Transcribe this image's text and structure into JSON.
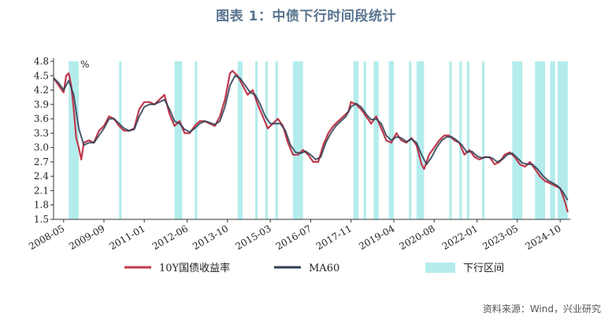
{
  "title": "图表 1：中债下行时间段统计",
  "source": "资料来源：Wind，兴业研究",
  "chart_data": {
    "type": "line",
    "y_unit": "%",
    "ylim": [
      1.5,
      4.8
    ],
    "yticks": [
      "1.5",
      "1.8",
      "2.1",
      "2.4",
      "2.7",
      "3.0",
      "3.3",
      "3.6",
      "3.9",
      "4.2",
      "4.5",
      "4.8"
    ],
    "xticks": [
      "2008-05",
      "2009-09",
      "2011-01",
      "2012-06",
      "2013-10",
      "2015-03",
      "2016-07",
      "2017-11",
      "2019-04",
      "2020-08",
      "2022-01",
      "2023-05",
      "2024-10"
    ],
    "x_range": [
      "2008-01",
      "2025-02"
    ],
    "legend": [
      {
        "name": "10Y国债收益率",
        "color": "#c0394b",
        "type": "line"
      },
      {
        "name": "MA60",
        "color": "#2c3e55",
        "type": "line"
      },
      {
        "name": "下行区间",
        "color": "#b4ecec",
        "type": "area"
      }
    ],
    "series": [
      {
        "name": "10Y国债收益率",
        "color": "#c0394b",
        "points": [
          [
            "2008-01",
            4.45
          ],
          [
            "2008-03",
            4.3
          ],
          [
            "2008-05",
            4.15
          ],
          [
            "2008-06",
            4.5
          ],
          [
            "2008-07",
            4.55
          ],
          [
            "2008-08",
            4.3
          ],
          [
            "2008-09",
            3.8
          ],
          [
            "2008-10",
            3.2
          ],
          [
            "2008-11",
            3.0
          ],
          [
            "2008-12",
            2.75
          ],
          [
            "2009-01",
            3.1
          ],
          [
            "2009-03",
            3.15
          ],
          [
            "2009-05",
            3.1
          ],
          [
            "2009-07",
            3.35
          ],
          [
            "2009-09",
            3.45
          ],
          [
            "2009-11",
            3.65
          ],
          [
            "2010-01",
            3.6
          ],
          [
            "2010-03",
            3.45
          ],
          [
            "2010-05",
            3.35
          ],
          [
            "2010-07",
            3.35
          ],
          [
            "2010-09",
            3.4
          ],
          [
            "2010-11",
            3.8
          ],
          [
            "2011-01",
            3.95
          ],
          [
            "2011-03",
            3.95
          ],
          [
            "2011-05",
            3.9
          ],
          [
            "2011-07",
            4.0
          ],
          [
            "2011-09",
            4.1
          ],
          [
            "2011-11",
            3.7
          ],
          [
            "2012-01",
            3.45
          ],
          [
            "2012-03",
            3.55
          ],
          [
            "2012-05",
            3.3
          ],
          [
            "2012-07",
            3.3
          ],
          [
            "2012-09",
            3.45
          ],
          [
            "2012-11",
            3.55
          ],
          [
            "2013-01",
            3.55
          ],
          [
            "2013-03",
            3.5
          ],
          [
            "2013-05",
            3.45
          ],
          [
            "2013-07",
            3.65
          ],
          [
            "2013-09",
            4.0
          ],
          [
            "2013-11",
            4.55
          ],
          [
            "2013-12",
            4.6
          ],
          [
            "2014-02",
            4.5
          ],
          [
            "2014-04",
            4.3
          ],
          [
            "2014-06",
            4.1
          ],
          [
            "2014-08",
            4.2
          ],
          [
            "2014-10",
            3.9
          ],
          [
            "2014-12",
            3.65
          ],
          [
            "2015-02",
            3.4
          ],
          [
            "2015-04",
            3.5
          ],
          [
            "2015-06",
            3.6
          ],
          [
            "2015-08",
            3.45
          ],
          [
            "2015-10",
            3.1
          ],
          [
            "2015-12",
            2.85
          ],
          [
            "2016-02",
            2.85
          ],
          [
            "2016-04",
            2.95
          ],
          [
            "2016-06",
            2.85
          ],
          [
            "2016-08",
            2.7
          ],
          [
            "2016-10",
            2.7
          ],
          [
            "2016-12",
            3.05
          ],
          [
            "2017-02",
            3.3
          ],
          [
            "2017-04",
            3.45
          ],
          [
            "2017-06",
            3.55
          ],
          [
            "2017-08",
            3.65
          ],
          [
            "2017-10",
            3.75
          ],
          [
            "2017-11",
            3.95
          ],
          [
            "2018-01",
            3.9
          ],
          [
            "2018-03",
            3.8
          ],
          [
            "2018-05",
            3.65
          ],
          [
            "2018-07",
            3.5
          ],
          [
            "2018-09",
            3.65
          ],
          [
            "2018-11",
            3.4
          ],
          [
            "2019-01",
            3.15
          ],
          [
            "2019-03",
            3.1
          ],
          [
            "2019-05",
            3.3
          ],
          [
            "2019-07",
            3.15
          ],
          [
            "2019-09",
            3.1
          ],
          [
            "2019-11",
            3.2
          ],
          [
            "2020-01",
            3.05
          ],
          [
            "2020-03",
            2.65
          ],
          [
            "2020-04",
            2.55
          ],
          [
            "2020-06",
            2.85
          ],
          [
            "2020-08",
            3.0
          ],
          [
            "2020-10",
            3.15
          ],
          [
            "2020-12",
            3.25
          ],
          [
            "2021-02",
            3.25
          ],
          [
            "2021-04",
            3.15
          ],
          [
            "2021-06",
            3.1
          ],
          [
            "2021-08",
            2.85
          ],
          [
            "2021-10",
            2.95
          ],
          [
            "2021-12",
            2.8
          ],
          [
            "2022-02",
            2.75
          ],
          [
            "2022-04",
            2.8
          ],
          [
            "2022-06",
            2.8
          ],
          [
            "2022-08",
            2.65
          ],
          [
            "2022-10",
            2.7
          ],
          [
            "2022-12",
            2.85
          ],
          [
            "2023-02",
            2.9
          ],
          [
            "2023-04",
            2.8
          ],
          [
            "2023-06",
            2.65
          ],
          [
            "2023-08",
            2.6
          ],
          [
            "2023-10",
            2.7
          ],
          [
            "2023-12",
            2.55
          ],
          [
            "2024-02",
            2.4
          ],
          [
            "2024-04",
            2.3
          ],
          [
            "2024-06",
            2.25
          ],
          [
            "2024-08",
            2.2
          ],
          [
            "2024-10",
            2.15
          ],
          [
            "2024-12",
            1.85
          ],
          [
            "2025-01",
            1.65
          ]
        ]
      },
      {
        "name": "MA60",
        "color": "#2c3e55",
        "points": [
          [
            "2008-01",
            4.45
          ],
          [
            "2008-03",
            4.35
          ],
          [
            "2008-05",
            4.2
          ],
          [
            "2008-07",
            4.4
          ],
          [
            "2008-09",
            4.1
          ],
          [
            "2008-11",
            3.4
          ],
          [
            "2009-01",
            3.05
          ],
          [
            "2009-03",
            3.1
          ],
          [
            "2009-05",
            3.1
          ],
          [
            "2009-07",
            3.25
          ],
          [
            "2009-09",
            3.4
          ],
          [
            "2009-11",
            3.6
          ],
          [
            "2010-01",
            3.6
          ],
          [
            "2010-03",
            3.5
          ],
          [
            "2010-05",
            3.4
          ],
          [
            "2010-07",
            3.35
          ],
          [
            "2010-09",
            3.38
          ],
          [
            "2010-11",
            3.65
          ],
          [
            "2011-01",
            3.85
          ],
          [
            "2011-03",
            3.9
          ],
          [
            "2011-05",
            3.9
          ],
          [
            "2011-07",
            3.95
          ],
          [
            "2011-09",
            4.0
          ],
          [
            "2011-11",
            3.8
          ],
          [
            "2012-01",
            3.55
          ],
          [
            "2012-03",
            3.5
          ],
          [
            "2012-05",
            3.38
          ],
          [
            "2012-07",
            3.32
          ],
          [
            "2012-09",
            3.4
          ],
          [
            "2012-11",
            3.5
          ],
          [
            "2013-01",
            3.55
          ],
          [
            "2013-03",
            3.52
          ],
          [
            "2013-05",
            3.48
          ],
          [
            "2013-07",
            3.55
          ],
          [
            "2013-09",
            3.85
          ],
          [
            "2013-11",
            4.3
          ],
          [
            "2014-01",
            4.5
          ],
          [
            "2014-03",
            4.45
          ],
          [
            "2014-05",
            4.3
          ],
          [
            "2014-07",
            4.15
          ],
          [
            "2014-09",
            4.1
          ],
          [
            "2014-11",
            3.9
          ],
          [
            "2015-01",
            3.65
          ],
          [
            "2015-03",
            3.5
          ],
          [
            "2015-05",
            3.5
          ],
          [
            "2015-07",
            3.5
          ],
          [
            "2015-09",
            3.35
          ],
          [
            "2015-11",
            3.05
          ],
          [
            "2016-01",
            2.9
          ],
          [
            "2016-03",
            2.88
          ],
          [
            "2016-05",
            2.92
          ],
          [
            "2016-07",
            2.85
          ],
          [
            "2016-09",
            2.75
          ],
          [
            "2016-11",
            2.8
          ],
          [
            "2017-01",
            3.1
          ],
          [
            "2017-03",
            3.3
          ],
          [
            "2017-05",
            3.45
          ],
          [
            "2017-07",
            3.55
          ],
          [
            "2017-09",
            3.65
          ],
          [
            "2017-11",
            3.85
          ],
          [
            "2018-01",
            3.92
          ],
          [
            "2018-03",
            3.85
          ],
          [
            "2018-05",
            3.7
          ],
          [
            "2018-07",
            3.58
          ],
          [
            "2018-09",
            3.6
          ],
          [
            "2018-11",
            3.5
          ],
          [
            "2019-01",
            3.25
          ],
          [
            "2019-03",
            3.15
          ],
          [
            "2019-05",
            3.22
          ],
          [
            "2019-07",
            3.2
          ],
          [
            "2019-09",
            3.12
          ],
          [
            "2019-11",
            3.18
          ],
          [
            "2020-01",
            3.1
          ],
          [
            "2020-03",
            2.85
          ],
          [
            "2020-05",
            2.65
          ],
          [
            "2020-07",
            2.8
          ],
          [
            "2020-09",
            3.0
          ],
          [
            "2020-11",
            3.15
          ],
          [
            "2021-01",
            3.22
          ],
          [
            "2021-03",
            3.22
          ],
          [
            "2021-05",
            3.15
          ],
          [
            "2021-07",
            3.05
          ],
          [
            "2021-09",
            2.9
          ],
          [
            "2021-11",
            2.92
          ],
          [
            "2022-01",
            2.82
          ],
          [
            "2022-03",
            2.78
          ],
          [
            "2022-05",
            2.8
          ],
          [
            "2022-07",
            2.78
          ],
          [
            "2022-09",
            2.7
          ],
          [
            "2022-11",
            2.75
          ],
          [
            "2023-01",
            2.85
          ],
          [
            "2023-03",
            2.88
          ],
          [
            "2023-05",
            2.78
          ],
          [
            "2023-07",
            2.68
          ],
          [
            "2023-09",
            2.65
          ],
          [
            "2023-11",
            2.65
          ],
          [
            "2024-01",
            2.55
          ],
          [
            "2024-03",
            2.42
          ],
          [
            "2024-05",
            2.32
          ],
          [
            "2024-07",
            2.26
          ],
          [
            "2024-09",
            2.2
          ],
          [
            "2024-11",
            2.08
          ],
          [
            "2025-01",
            1.9
          ]
        ]
      }
    ],
    "down_intervals": [
      [
        "2008-07",
        "2008-11"
      ],
      [
        "2010-03",
        "2010-04"
      ],
      [
        "2012-01",
        "2012-04"
      ],
      [
        "2012-09",
        "2012-10"
      ],
      [
        "2014-02",
        "2014-04"
      ],
      [
        "2014-09",
        "2014-10"
      ],
      [
        "2015-01",
        "2015-02"
      ],
      [
        "2015-05",
        "2015-06"
      ],
      [
        "2015-12",
        "2016-04"
      ],
      [
        "2017-12",
        "2018-02"
      ],
      [
        "2018-04",
        "2018-05"
      ],
      [
        "2018-08",
        "2018-10"
      ],
      [
        "2019-02",
        "2019-04"
      ],
      [
        "2019-10",
        "2019-11"
      ],
      [
        "2020-01",
        "2020-04"
      ],
      [
        "2021-02",
        "2021-03"
      ],
      [
        "2021-06",
        "2021-07"
      ],
      [
        "2021-09",
        "2021-10"
      ],
      [
        "2022-03",
        "2022-04"
      ],
      [
        "2023-03",
        "2023-07"
      ],
      [
        "2023-12",
        "2024-04"
      ],
      [
        "2024-06",
        "2024-08"
      ],
      [
        "2024-09",
        "2025-01"
      ]
    ]
  }
}
